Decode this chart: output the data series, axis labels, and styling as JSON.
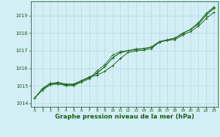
{
  "background_color": "#d4eef5",
  "grid_color": "#b8dce8",
  "line_color_main": "#1a5c1a",
  "line_color_secondary": "#2d7a2d",
  "xlabel": "Graphe pression niveau de la mer (hPa)",
  "xlabel_fontsize": 6.5,
  "xlim": [
    -0.5,
    23.5
  ],
  "ylim": [
    1013.8,
    1019.8
  ],
  "yticks": [
    1014,
    1015,
    1016,
    1017,
    1018,
    1019
  ],
  "hours": [
    0,
    1,
    2,
    3,
    4,
    5,
    6,
    7,
    8,
    9,
    10,
    11,
    12,
    13,
    14,
    15,
    16,
    17,
    18,
    19,
    20,
    21,
    22,
    23
  ],
  "line1": [
    1014.3,
    1014.8,
    1015.1,
    1015.2,
    1015.1,
    1015.1,
    1015.3,
    1015.5,
    1015.7,
    1016.1,
    1016.6,
    1016.9,
    1017.0,
    1017.1,
    1017.1,
    1017.2,
    1017.5,
    1017.6,
    1017.7,
    1018.0,
    1018.2,
    1018.5,
    1019.0,
    1019.4
  ],
  "line2": [
    1014.3,
    1014.75,
    1015.05,
    1015.1,
    1015.05,
    1015.05,
    1015.2,
    1015.4,
    1015.85,
    1016.2,
    1016.75,
    1016.95,
    1017.0,
    1017.05,
    1017.1,
    1017.2,
    1017.5,
    1017.6,
    1017.7,
    1017.95,
    1018.2,
    1018.55,
    1019.1,
    1019.45
  ],
  "line3": [
    1014.3,
    1014.85,
    1015.15,
    1015.15,
    1015.05,
    1015.05,
    1015.28,
    1015.48,
    1015.6,
    1015.82,
    1016.15,
    1016.55,
    1016.9,
    1016.98,
    1017.03,
    1017.12,
    1017.48,
    1017.58,
    1017.63,
    1017.88,
    1018.08,
    1018.38,
    1018.82,
    1019.18
  ],
  "line4": [
    1014.3,
    1014.82,
    1015.08,
    1015.12,
    1015.0,
    1015.0,
    1015.22,
    1015.42,
    1015.75,
    1016.08,
    1016.58,
    1016.88,
    1016.98,
    1017.08,
    1017.12,
    1017.22,
    1017.52,
    1017.62,
    1017.72,
    1017.98,
    1018.22,
    1018.58,
    1019.12,
    1019.48
  ]
}
